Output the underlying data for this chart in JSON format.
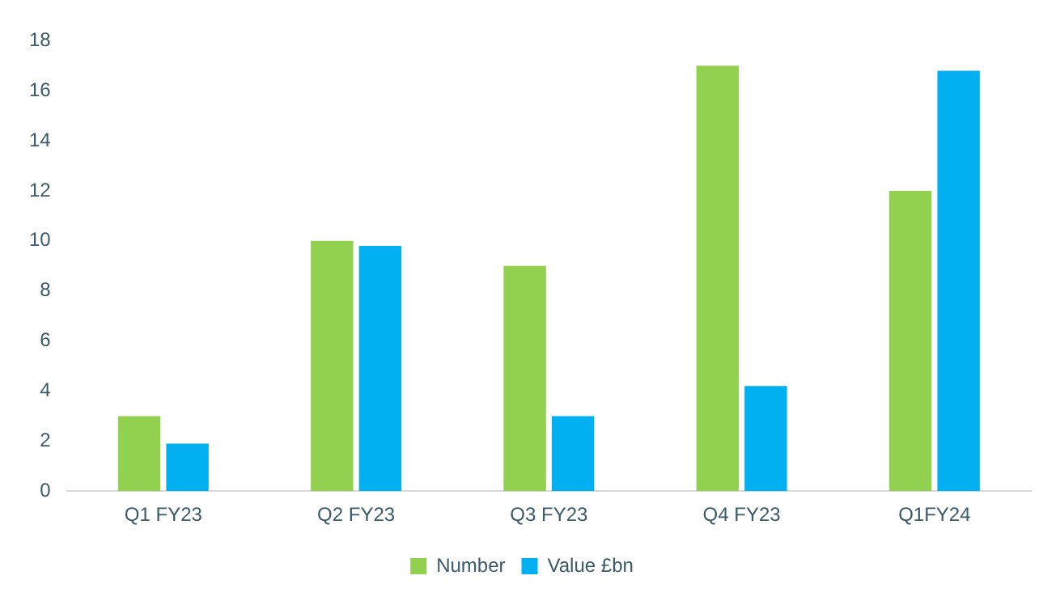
{
  "chart_data": {
    "type": "bar",
    "categories": [
      "Q1 FY23",
      "Q2 FY23",
      "Q3 FY23",
      "Q4 FY23",
      "Q1FY24"
    ],
    "series": [
      {
        "name": "Number",
        "color": "#92d050",
        "values": [
          3,
          10,
          9,
          17,
          12
        ]
      },
      {
        "name": "Value £bn",
        "color": "#00b0f0",
        "values": [
          1.9,
          9.8,
          3,
          4.2,
          16.8
        ]
      }
    ],
    "ylim": [
      0,
      18
    ],
    "yticks": [
      0,
      2,
      4,
      6,
      8,
      10,
      12,
      14,
      16,
      18
    ],
    "grid": false,
    "legend": "bottom"
  }
}
